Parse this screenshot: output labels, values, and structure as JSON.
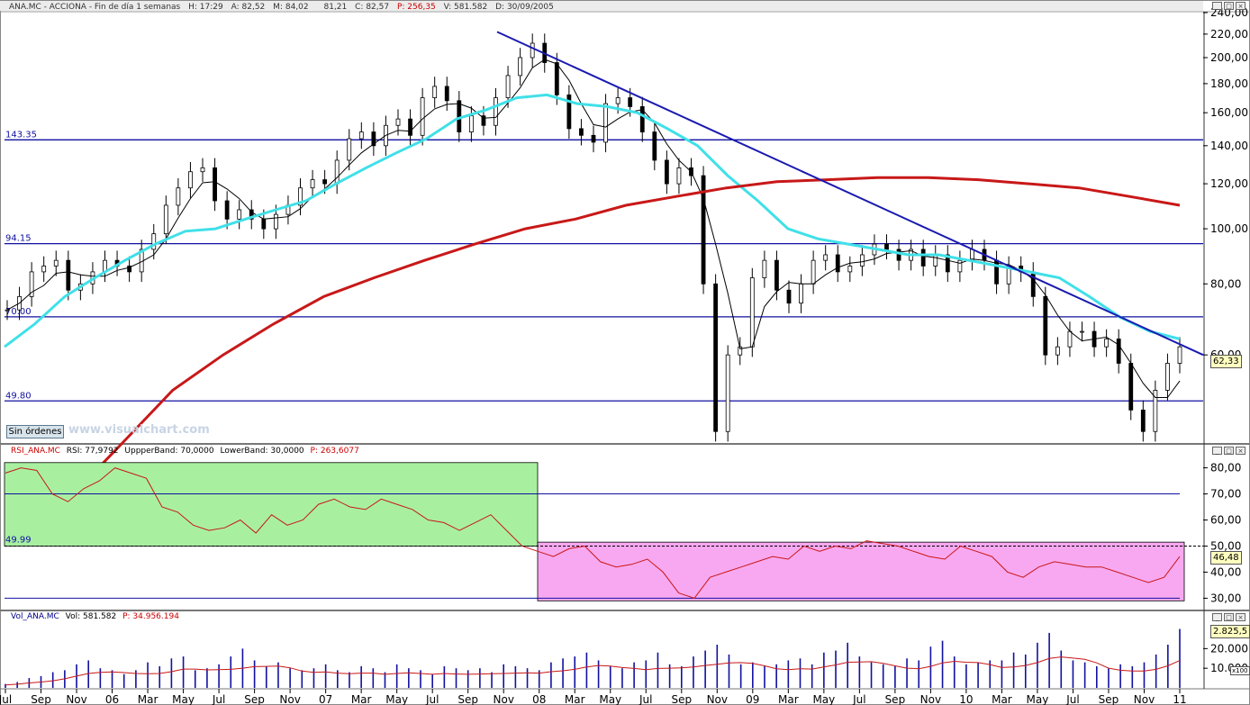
{
  "header": {
    "symbol": "ANA.MC - ACCIONA - Fin de día 1 semanas",
    "h_label": "H:",
    "h": "17:29",
    "a_label": "A:",
    "a": "82,52",
    "m_label": "M:",
    "m": "84,02",
    "b_label": "",
    "b": "81,21",
    "c_label": "C:",
    "c": "82,57",
    "p": "P: 256,35",
    "v_label": "V:",
    "v": "581.582",
    "d_label": "D:",
    "d": "30/09/2005"
  },
  "price_last": "62,33",
  "rsi_header": {
    "name": "RSI_ANA.MC",
    "rsi": "RSI: 77,9792",
    "upper": "UppperBand: 70,0000",
    "lower": "LowerBand: 30,0000",
    "p": "P: 263,6077"
  },
  "rsi_last": "46,48",
  "vol_header": {
    "name": "Vol_ANA.MC",
    "vol": "Vol: 581.582",
    "p": "P: 34.956.194"
  },
  "vol_last": "2.825,5",
  "vol_scale": "x100",
  "sin_ordenes": "Sin órdenes",
  "watermark": "www.visualchart.com",
  "colors": {
    "trendline": "#1a1ab0",
    "hline": "#1010a0",
    "sma_short": "#000000",
    "sma_cyan": "#40e0e8",
    "sma_long": "#c81818",
    "rsi_line": "#c81818",
    "vol_bar": "#1010a0",
    "rsi_green": "#a8f0a0",
    "rsi_pink": "#f8a8f0"
  },
  "chart_data": [
    {
      "type": "line",
      "title": "ANA.MC - ACCIONA",
      "x_labels": [
        "Jul",
        "Sep",
        "Nov",
        "06",
        "Mar",
        "May",
        "Jul",
        "Sep",
        "Nov",
        "07",
        "Mar",
        "May",
        "Jul",
        "Sep",
        "Nov",
        "08",
        "Mar",
        "May",
        "Jul",
        "Sep",
        "Nov",
        "09",
        "Mar",
        "May",
        "Jul",
        "Sep",
        "Nov",
        "10",
        "Mar",
        "May",
        "Jul",
        "Sep",
        "Nov",
        "11"
      ],
      "y_ticks": [
        "240,00",
        "220,00",
        "200,00",
        "180,00",
        "160,00",
        "140,00",
        "120,00",
        "100,00",
        "80,00",
        "60,00"
      ],
      "ylim": [
        42,
        240
      ],
      "horizontal_levels": [
        {
          "label": "143.35",
          "value": 143.35
        },
        {
          "label": "94.15",
          "value": 94.15
        },
        {
          "label": "70.00",
          "value": 70.0
        },
        {
          "label": "49.80",
          "value": 49.8
        }
      ],
      "trendline": [
        {
          "x": "Nov 07",
          "y": 222
        },
        {
          "x": "Jan 11",
          "y": 60
        }
      ],
      "series": [
        {
          "values_approx": [
            72,
            76,
            84,
            86,
            88,
            78,
            80,
            84,
            88,
            86,
            84,
            92,
            98,
            110,
            118,
            126,
            128,
            112,
            104,
            108,
            104,
            100,
            106,
            110,
            118,
            122,
            120,
            132,
            144,
            148,
            140,
            152,
            156,
            146,
            170,
            178,
            168,
            148,
            158,
            152,
            170,
            186,
            200,
            212,
            196,
            172,
            150,
            146,
            142,
            166,
            170,
            164,
            148,
            132,
            120,
            128,
            124,
            80,
            44,
            60,
            62,
            82,
            88,
            78,
            74,
            80,
            88,
            90,
            84,
            86,
            90,
            94,
            92,
            88,
            92,
            86,
            90,
            84,
            88,
            92,
            88,
            80,
            86,
            84,
            76,
            60,
            62,
            66,
            66,
            62,
            64,
            58,
            48,
            44,
            52,
            58,
            62
          ]
        },
        {
          "values_approx": [
            62,
            68,
            76,
            82,
            88,
            94,
            99,
            100,
            104,
            108,
            112,
            120,
            128,
            136,
            144,
            156,
            162,
            170,
            172,
            166,
            164,
            160,
            150,
            140,
            124,
            112,
            100,
            96,
            94,
            92,
            90,
            90,
            88,
            86,
            84,
            82,
            76,
            70,
            66,
            64
          ]
        },
        {
          "values_approx": [
            34,
            42,
            52,
            60,
            68,
            76,
            82,
            88,
            94,
            100,
            104,
            110,
            114,
            118,
            121,
            122,
            123,
            123,
            122,
            120,
            118,
            114,
            110
          ]
        }
      ]
    },
    {
      "type": "line",
      "title": "RSI_ANA.MC",
      "y_ticks": [
        "80,00",
        "70,00",
        "60,00",
        "50,00",
        "40,00",
        "30,00"
      ],
      "ylim": [
        26,
        84
      ],
      "bands": {
        "upper": 70,
        "lower": 30,
        "mid": 50
      },
      "level_label": "49.99",
      "series": [
        {
          "name": "RSI",
          "values_approx": [
            78,
            80,
            79,
            70,
            67,
            72,
            75,
            80,
            78,
            76,
            65,
            63,
            58,
            56,
            57,
            60,
            55,
            62,
            58,
            60,
            66,
            68,
            65,
            64,
            68,
            66,
            64,
            60,
            59,
            56,
            59,
            62,
            56,
            50,
            48,
            46,
            49,
            50,
            44,
            42,
            43,
            45,
            40,
            32,
            30,
            38,
            40,
            42,
            44,
            46,
            45,
            50,
            48,
            50,
            49,
            52,
            51,
            50,
            48,
            46,
            45,
            50,
            48,
            46,
            40,
            38,
            42,
            44,
            43,
            42,
            42,
            40,
            38,
            36,
            38,
            46
          ]
        }
      ],
      "zones": [
        {
          "label": "overbought-region",
          "from": "Jul 05",
          "to": "Jan 08",
          "range": [
            50,
            82
          ]
        },
        {
          "label": "oversold-region",
          "from": "Jan 08",
          "to": "Jan 11",
          "range": [
            29,
            52
          ]
        }
      ]
    },
    {
      "type": "bar",
      "title": "Vol_ANA.MC",
      "y_ticks": [
        "20.000",
        "10.000"
      ],
      "ylim": [
        0,
        33000
      ],
      "unit": "x100",
      "values_approx": [
        2,
        3,
        5,
        6,
        8,
        9,
        12,
        14,
        10,
        9,
        7,
        9,
        13,
        11,
        15,
        16,
        9,
        10,
        12,
        16,
        20,
        14,
        11,
        13,
        10,
        9,
        10,
        12,
        9,
        8,
        11,
        10,
        8,
        12,
        10,
        9,
        7,
        11,
        10,
        9,
        10,
        8,
        12,
        11,
        10,
        9,
        13,
        15,
        16,
        18,
        14,
        11,
        10,
        13,
        14,
        18,
        12,
        11,
        16,
        19,
        22,
        17,
        12,
        13,
        11,
        12,
        14,
        15,
        12,
        18,
        19,
        23,
        16,
        13,
        12,
        11,
        15,
        14,
        21,
        24,
        16,
        12,
        13,
        14,
        14,
        18,
        17,
        23,
        28,
        19,
        14,
        13,
        11,
        10,
        12,
        11,
        13,
        17,
        22,
        30
      ]
    }
  ]
}
